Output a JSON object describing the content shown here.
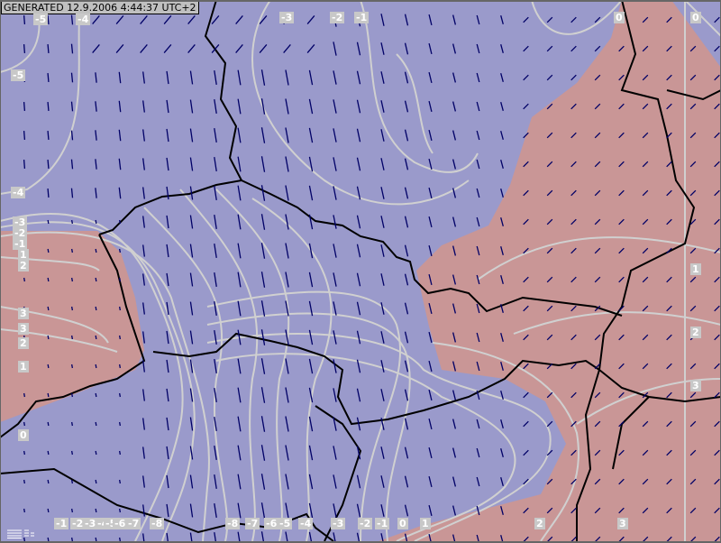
{
  "header": {
    "generated": "GENERATED 12.9.2006 4:44:37 UTC+2"
  },
  "colors": {
    "cold": "#9a9acb",
    "warm": "#c99696",
    "contour": "#d0d0d0",
    "border": "#000000",
    "wind": "#000066"
  },
  "contour_labels": {
    "top": [
      "-5",
      "-4",
      "-3",
      "-2",
      "-1",
      "0",
      "0"
    ],
    "left": [
      "-5",
      "-4",
      "-3",
      "-2",
      "-1",
      "1",
      "2",
      "3",
      "3",
      "2",
      "1",
      "0"
    ],
    "right": [
      "1",
      "2",
      "3"
    ],
    "bottom": [
      "-1",
      "-2",
      "-3",
      "-4",
      "-5",
      "-6",
      "-7",
      "-8",
      "-8",
      "-7",
      "-6",
      "-5",
      "-4",
      "-3",
      "-2",
      "-1",
      "0",
      "1",
      "2",
      "3"
    ]
  },
  "icons": {
    "legend": "legend-icon",
    "wind": "wind-arrow-icon"
  }
}
